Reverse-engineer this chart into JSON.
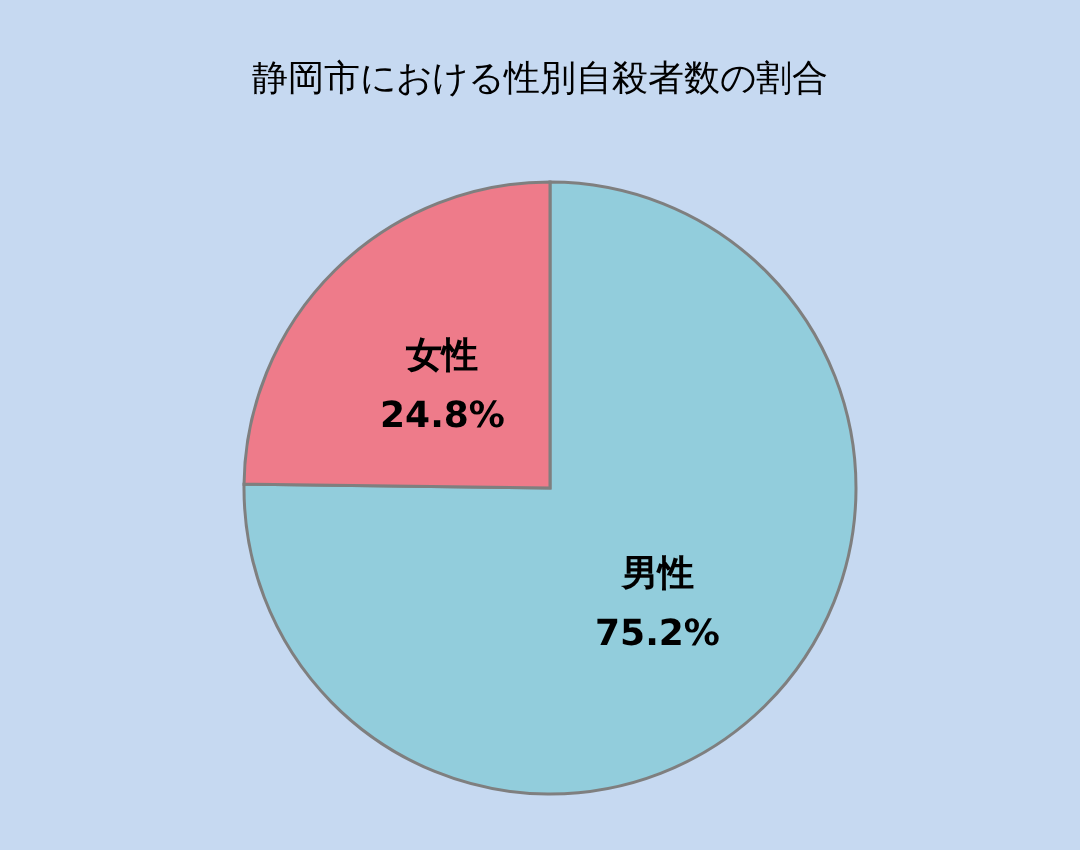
{
  "chart_data": {
    "type": "pie",
    "title": "静岡市における性別自殺者数の割合",
    "categories": [
      "男性",
      "女性"
    ],
    "values": [
      75.2,
      24.8
    ],
    "colors": [
      "#92cddc",
      "#ee7b8a"
    ],
    "value_labels": [
      "75.2%",
      "24.8%"
    ]
  }
}
